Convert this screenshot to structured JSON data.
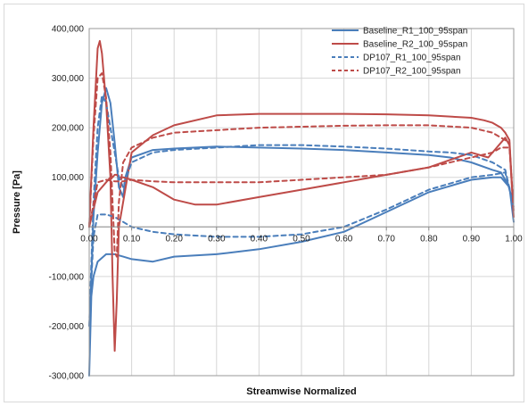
{
  "chart_data": {
    "type": "line",
    "title": "",
    "xlabel": "Streamwise Normalized",
    "ylabel": "Pressure [Pa]",
    "xlim": [
      0.0,
      1.0
    ],
    "ylim": [
      -300000,
      400000
    ],
    "x_ticks": [
      0.0,
      0.1,
      0.2,
      0.3,
      0.4,
      0.5,
      0.6,
      0.7,
      0.8,
      0.9,
      1.0
    ],
    "x_tick_labels": [
      "0.00",
      "0.10",
      "0.20",
      "0.30",
      "0.40",
      "0.50",
      "0.60",
      "0.70",
      "0.80",
      "0.90",
      "1.00"
    ],
    "y_ticks": [
      -300000,
      -200000,
      -100000,
      0,
      100000,
      200000,
      300000,
      400000
    ],
    "y_tick_labels": [
      "-300,000",
      "-200,000",
      "-100,000",
      "0",
      "100,000",
      "200,000",
      "300,000",
      "400,000"
    ],
    "grid": true,
    "legend_position": "top-right",
    "colors": {
      "blue": "#4a7ebb",
      "red": "#be4b48"
    },
    "series": [
      {
        "name": "Baseline_R1_100_95span",
        "color": "#4a7ebb",
        "dash": "solid",
        "x": [
          0.0,
          0.005,
          0.01,
          0.02,
          0.03,
          0.04,
          0.05,
          0.06,
          0.07,
          0.08,
          0.085,
          0.1,
          0.15,
          0.2,
          0.3,
          0.4,
          0.5,
          0.6,
          0.7,
          0.8,
          0.85,
          0.9,
          0.95,
          0.97,
          0.99,
          1.0,
          0.99,
          0.97,
          0.95,
          0.9,
          0.8,
          0.7,
          0.6,
          0.5,
          0.4,
          0.3,
          0.2,
          0.15,
          0.1,
          0.08,
          0.06,
          0.04,
          0.02,
          0.01,
          0.005,
          0.0
        ],
        "y": [
          -300000,
          -100000,
          20000,
          150000,
          250000,
          280000,
          250000,
          170000,
          80000,
          60000,
          100000,
          140000,
          155000,
          158000,
          162000,
          160000,
          158000,
          155000,
          150000,
          145000,
          140000,
          130000,
          115000,
          110000,
          80000,
          10000,
          80000,
          100000,
          100000,
          95000,
          70000,
          30000,
          -10000,
          -30000,
          -45000,
          -55000,
          -60000,
          -70000,
          -65000,
          -60000,
          -55000,
          -55000,
          -70000,
          -100000,
          -140000,
          -300000
        ]
      },
      {
        "name": "Baseline_R2_100_95span",
        "color": "#be4b48",
        "dash": "solid",
        "x": [
          0.0,
          0.01,
          0.02,
          0.025,
          0.03,
          0.04,
          0.05,
          0.055,
          0.06,
          0.065,
          0.07,
          0.1,
          0.15,
          0.2,
          0.3,
          0.4,
          0.5,
          0.6,
          0.7,
          0.8,
          0.9,
          0.93,
          0.95,
          0.97,
          0.98,
          0.99,
          1.0,
          0.99,
          0.98,
          0.96,
          0.94,
          0.9,
          0.8,
          0.7,
          0.6,
          0.5,
          0.4,
          0.3,
          0.25,
          0.2,
          0.15,
          0.1,
          0.08,
          0.07,
          0.065,
          0.06,
          0.055,
          0.05,
          0.04,
          0.02,
          0.0
        ],
        "y": [
          0,
          200000,
          360000,
          375000,
          350000,
          250000,
          100000,
          -100000,
          -250000,
          -150000,
          0,
          150000,
          185000,
          205000,
          225000,
          228000,
          228000,
          228000,
          227000,
          225000,
          220000,
          215000,
          210000,
          200000,
          190000,
          175000,
          20000,
          165000,
          180000,
          160000,
          140000,
          150000,
          120000,
          105000,
          90000,
          75000,
          60000,
          45000,
          45000,
          55000,
          80000,
          95000,
          100000,
          100000,
          105000,
          105000,
          100000,
          100000,
          90000,
          70000,
          0
        ]
      },
      {
        "name": "DP107_R1_100_95span",
        "color": "#4a7ebb",
        "dash": "dashed",
        "x": [
          0.0,
          0.01,
          0.02,
          0.03,
          0.04,
          0.05,
          0.06,
          0.07,
          0.08,
          0.1,
          0.15,
          0.2,
          0.3,
          0.4,
          0.5,
          0.6,
          0.7,
          0.8,
          0.85,
          0.9,
          0.95,
          0.98,
          1.0,
          0.98,
          0.95,
          0.9,
          0.8,
          0.7,
          0.6,
          0.5,
          0.4,
          0.3,
          0.2,
          0.15,
          0.1,
          0.08,
          0.06,
          0.04,
          0.02,
          0.01,
          0.0
        ],
        "y": [
          -200000,
          50000,
          200000,
          265000,
          250000,
          200000,
          150000,
          100000,
          80000,
          130000,
          150000,
          155000,
          160000,
          165000,
          165000,
          162000,
          158000,
          152000,
          150000,
          145000,
          130000,
          115000,
          40000,
          110000,
          105000,
          100000,
          75000,
          35000,
          0,
          -15000,
          -20000,
          -20000,
          -15000,
          -10000,
          0,
          10000,
          20000,
          25000,
          25000,
          -20000,
          -200000
        ]
      },
      {
        "name": "DP107_R2_100_95span",
        "color": "#be4b48",
        "dash": "dashed",
        "x": [
          0.0,
          0.01,
          0.02,
          0.03,
          0.04,
          0.05,
          0.055,
          0.06,
          0.065,
          0.07,
          0.08,
          0.1,
          0.15,
          0.2,
          0.3,
          0.4,
          0.5,
          0.6,
          0.7,
          0.8,
          0.9,
          0.95,
          0.97,
          0.99,
          1.0,
          0.99,
          0.97,
          0.95,
          0.9,
          0.8,
          0.7,
          0.6,
          0.5,
          0.4,
          0.3,
          0.2,
          0.15,
          0.1,
          0.08,
          0.06,
          0.04,
          0.02,
          0.0
        ],
        "y": [
          0,
          180000,
          300000,
          310000,
          260000,
          150000,
          50000,
          -50000,
          -60000,
          50000,
          130000,
          160000,
          180000,
          190000,
          195000,
          200000,
          202000,
          204000,
          205000,
          205000,
          200000,
          190000,
          180000,
          170000,
          30000,
          160000,
          160000,
          150000,
          140000,
          120000,
          105000,
          100000,
          95000,
          90000,
          90000,
          90000,
          92000,
          95000,
          92000,
          92000,
          95000,
          90000,
          0
        ]
      }
    ]
  }
}
